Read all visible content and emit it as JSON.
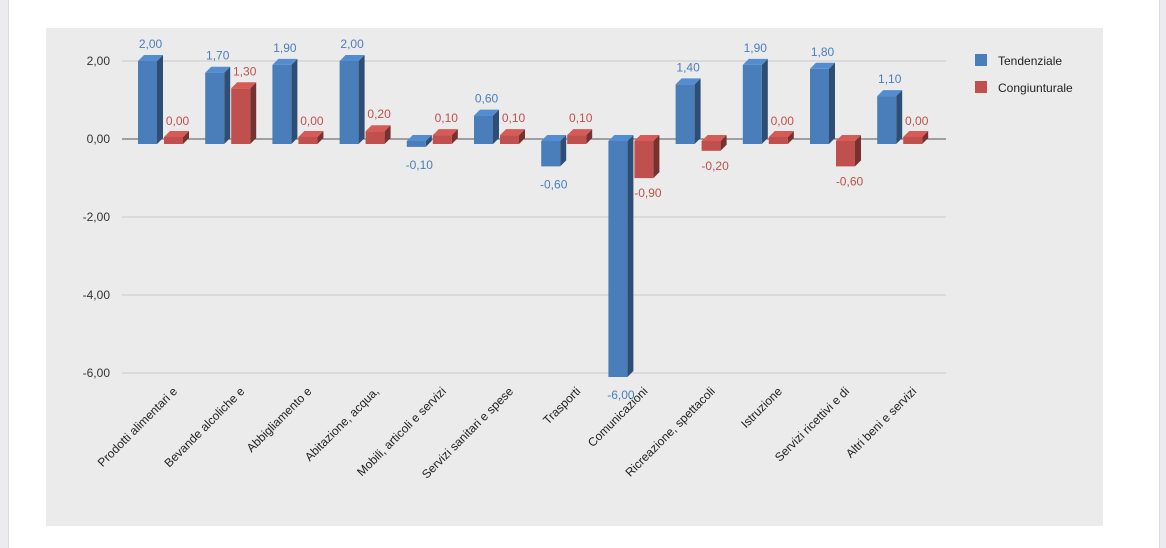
{
  "chart_data": {
    "type": "bar",
    "categories": [
      "Prodotti alimentari e",
      "Bevande alcoliche e",
      "Abbigliamento e",
      "Abitazione, acqua,",
      "Mobili, articoli e servizi",
      "Servizi sanitari e spese",
      "Trasporti",
      "Comunicazioni",
      "Ricreazione, spettacoli",
      "Istruzione",
      "Servizi ricettivi e di",
      "Altri beni e servizi"
    ],
    "series": [
      {
        "name": "Tendenziale",
        "color": "#4a7ebb",
        "values": [
          2.0,
          1.7,
          1.9,
          2.0,
          -0.1,
          0.6,
          -0.6,
          -6.0,
          1.4,
          1.9,
          1.8,
          1.1
        ],
        "labels": [
          "2,00",
          "1,70",
          "1,90",
          "2,00",
          "-0,10",
          "0,60",
          "-0,60",
          "-6,00",
          "1,40",
          "1,90",
          "1,80",
          "1,10"
        ]
      },
      {
        "name": "Congiunturale",
        "color": "#c0504d",
        "values": [
          0.0,
          1.3,
          0.0,
          0.2,
          0.1,
          0.1,
          0.1,
          -0.9,
          -0.2,
          0.0,
          -0.6,
          0.0
        ],
        "labels": [
          "0,00",
          "1,30",
          "0,00",
          "0,20",
          "0,10",
          "0,10",
          "0,10",
          "-0,90",
          "-0,20",
          "0,00",
          "-0,60",
          "0,00"
        ]
      }
    ],
    "yticks": [
      2,
      0,
      -2,
      -4,
      -6
    ],
    "ytick_labels": [
      "2,00",
      "0,00",
      "-2,00",
      "-4,00",
      "-6,00"
    ],
    "ylim": [
      -6,
      2
    ],
    "grid": true,
    "legend_position": "right",
    "title": "",
    "xlabel": "",
    "ylabel": ""
  }
}
